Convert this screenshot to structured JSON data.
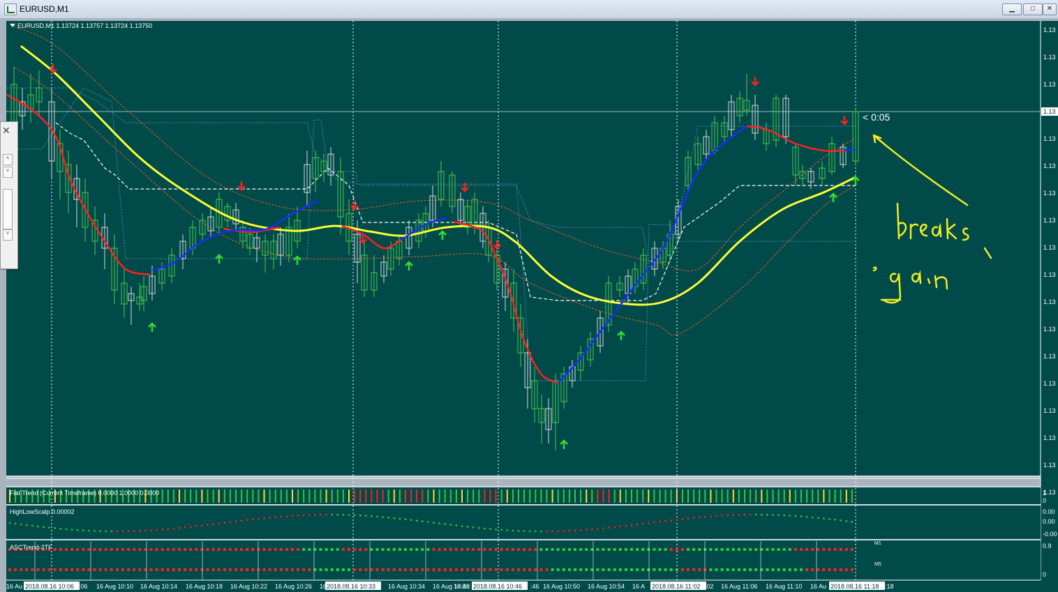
{
  "window": {
    "title": "EURUSD,M1",
    "minimize_glyph": "▁",
    "maximize_glyph": "□",
    "close_glyph": "✕"
  },
  "chart": {
    "header": "EURUSD,M1  1.13724 1.13757 1.13724 1.13750",
    "timer": "< 0:05",
    "price_labels": [
      "1.13",
      "1.13",
      "1.13",
      "1.13",
      "1.13",
      "1.13",
      "1.13",
      "1.13",
      "1.13",
      "1.13",
      "1.13",
      "1.13",
      "1.13",
      "1.13",
      "1.13",
      "1.13",
      "1.13",
      "1.13"
    ],
    "current_price_label": "1.13",
    "time_labels": [
      "16 Aug 10:10",
      "16 Aug 10:14",
      "16 Aug 10:18",
      "16 Aug 10:22",
      "16 Aug 10:26",
      "16 Aug 10:34",
      "16 Aug 10:38",
      "16 Aug 10:50",
      "16 Aug 10:54",
      "16 Aug 11:06",
      "16 Aug 11:10"
    ],
    "time_fragments": [
      "16 Au",
      ":06",
      "16 A",
      "16 Au",
      ":46",
      "16 A",
      ":02",
      "16 Au",
      ":18"
    ],
    "highlighted_times": [
      "2018.08.16 10:06",
      "2018.08.16 10:33",
      "2018.08.16 10:46",
      "2018.08.16 11:02",
      "2018.08.16 11:18"
    ],
    "handwriting": [
      "breaks",
      "again"
    ],
    "colors": {
      "background": "#004a4a",
      "up_candle": "#4cc94c",
      "down_candle": "#d8d8d8",
      "ma_yellow": "#ffff33",
      "ma_red": "#ff2020",
      "ma_blue": "#1a2cff"
    }
  },
  "indicators": {
    "flat_trend": {
      "label": "Flat Trend (Current Timeframe) 0.0000 1.0000 0.0000",
      "scale_top": "1",
      "scale_bottom": "0"
    },
    "highlow": {
      "label": "HighLowScalp 0.00002",
      "scale": [
        "0.00",
        "0.00",
        "-0.00"
      ]
    },
    "asc": {
      "label": "ASCTrend-2TF",
      "scale_top": "0.9",
      "scale_bottom": "0",
      "row1": "M1",
      "row2": "M5"
    }
  }
}
